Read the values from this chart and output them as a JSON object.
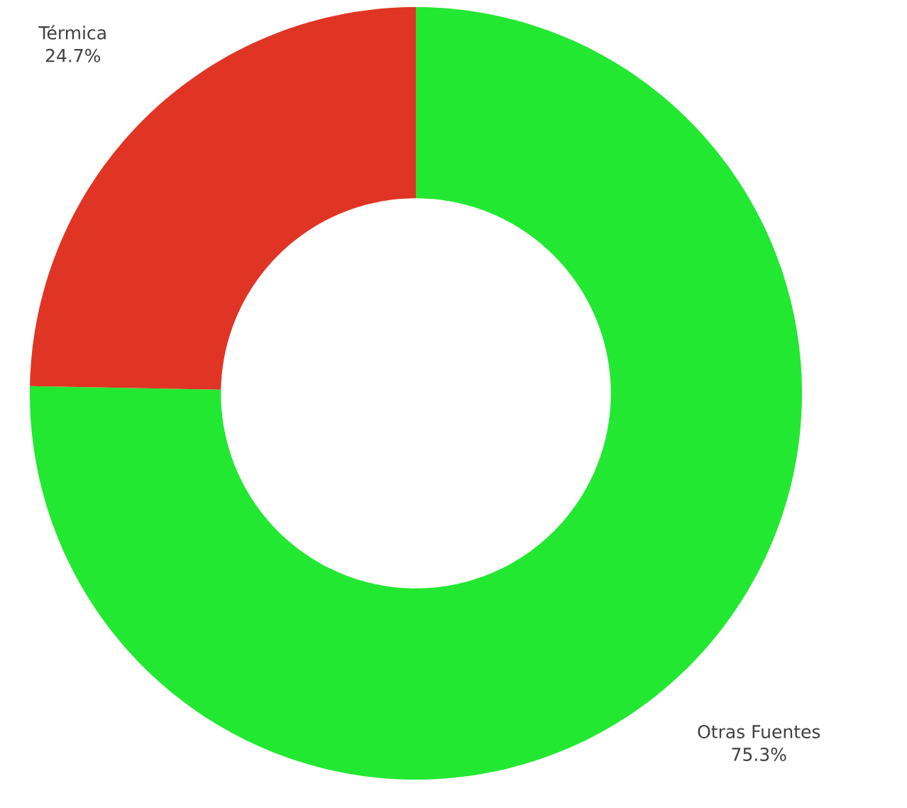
{
  "chart_data": {
    "type": "donut",
    "categories": [
      "Otras Fuentes",
      "Térmica"
    ],
    "values": [
      75.3,
      24.7
    ],
    "colors": [
      "#22e832",
      "#e03424"
    ],
    "value_labels": [
      "75.3%",
      "24.7%"
    ]
  }
}
